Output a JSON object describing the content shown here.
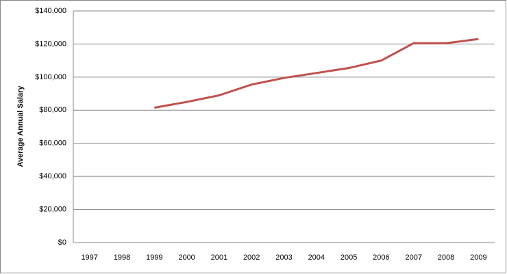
{
  "chart_data": {
    "type": "line",
    "y_label": "Average Annual Salary",
    "categories": [
      "1997",
      "1998",
      "1999",
      "2000",
      "2001",
      "2002",
      "2003",
      "2004",
      "2005",
      "2006",
      "2007",
      "2008",
      "2009"
    ],
    "series": [
      {
        "name": "Average Annual Salary",
        "color": "#c0504d",
        "values": [
          null,
          null,
          81500,
          85000,
          89000,
          95500,
          99500,
          102500,
          105500,
          110000,
          120500,
          120500,
          123000
        ]
      }
    ],
    "ylim": [
      0,
      140000
    ],
    "yticks": [
      {
        "value": 0,
        "label": "$0"
      },
      {
        "value": 20000,
        "label": "$20,000"
      },
      {
        "value": 40000,
        "label": "$40,000"
      },
      {
        "value": 60000,
        "label": "$60,000"
      },
      {
        "value": 80000,
        "label": "$80,000"
      },
      {
        "value": 100000,
        "label": "$100,000"
      },
      {
        "value": 120000,
        "label": "$120,000"
      },
      {
        "value": 140000,
        "label": "$140,000"
      }
    ],
    "grid": true
  }
}
